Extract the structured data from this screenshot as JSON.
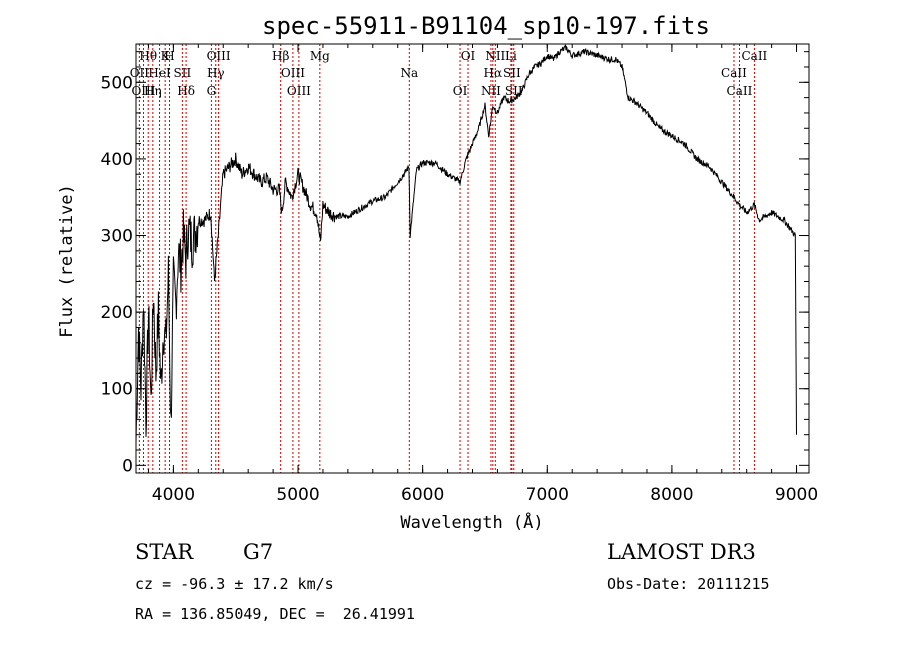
{
  "chart_data": {
    "type": "line",
    "title": "spec-55911-B91104_sp10-197.fits",
    "xlabel": "Wavelength (Å)",
    "ylabel": "Flux (relative)",
    "xlim": [
      3700,
      9100
    ],
    "ylim": [
      -10,
      550
    ],
    "xticks": [
      4000,
      5000,
      6000,
      7000,
      8000,
      9000
    ],
    "yticks": [
      0,
      100,
      200,
      300,
      400,
      500
    ],
    "spectrum": {
      "x": [
        3700,
        3720,
        3740,
        3760,
        3780,
        3800,
        3820,
        3840,
        3860,
        3880,
        3900,
        3920,
        3940,
        3960,
        3980,
        4000,
        4020,
        4040,
        4060,
        4080,
        4100,
        4120,
        4150,
        4200,
        4250,
        4300,
        4330,
        4360,
        4400,
        4450,
        4500,
        4550,
        4600,
        4650,
        4700,
        4750,
        4800,
        4850,
        4870,
        4900,
        4950,
        5000,
        5050,
        5100,
        5150,
        5180,
        5200,
        5250,
        5300,
        5400,
        5500,
        5600,
        5700,
        5800,
        5850,
        5890,
        5900,
        5950,
        6000,
        6100,
        6200,
        6300,
        6350,
        6400,
        6450,
        6500,
        6530,
        6563,
        6600,
        6650,
        6700,
        6750,
        6800,
        6850,
        6900,
        6950,
        7000,
        7050,
        7100,
        7150,
        7200,
        7300,
        7400,
        7500,
        7550,
        7600,
        7650,
        7700,
        7800,
        7900,
        8000,
        8100,
        8200,
        8300,
        8400,
        8498,
        8542,
        8600,
        8662,
        8700,
        8800,
        8900,
        8990,
        9000
      ],
      "y": [
        30,
        180,
        100,
        220,
        60,
        200,
        80,
        230,
        120,
        200,
        100,
        180,
        160,
        250,
        50,
        240,
        210,
        280,
        260,
        300,
        270,
        310,
        290,
        320,
        320,
        330,
        240,
        300,
        380,
        390,
        400,
        380,
        390,
        380,
        370,
        375,
        360,
        360,
        330,
        370,
        350,
        380,
        360,
        340,
        330,
        290,
        340,
        330,
        325,
        325,
        335,
        345,
        350,
        370,
        380,
        390,
        300,
        385,
        395,
        395,
        380,
        370,
        400,
        420,
        440,
        470,
        430,
        470,
        460,
        480,
        475,
        480,
        490,
        510,
        520,
        525,
        535,
        530,
        540,
        545,
        535,
        540,
        535,
        530,
        530,
        520,
        480,
        475,
        460,
        440,
        430,
        420,
        400,
        390,
        370,
        350,
        340,
        330,
        340,
        320,
        330,
        320,
        300,
        40
      ]
    },
    "lines": [
      {
        "label": "Hθ",
        "x": 3798
      },
      {
        "label": "OII",
        "x": 3727
      },
      {
        "label": "OIII",
        "x": 3760
      },
      {
        "label": "K",
        "x": 3934
      },
      {
        "label": "HeI",
        "x": 3889
      },
      {
        "label": "Hη",
        "x": 3835
      },
      {
        "label": "H",
        "x": 3969
      },
      {
        "label": "SII",
        "x": 4072
      },
      {
        "label": "Hδ",
        "x": 4102
      },
      {
        "label": "OIII",
        "x": 4363
      },
      {
        "label": "Hγ",
        "x": 4340
      },
      {
        "label": "G",
        "x": 4305
      },
      {
        "label": "Hβ",
        "x": 4861
      },
      {
        "label": "OIII",
        "x": 4959
      },
      {
        "label": "OIII",
        "x": 5007
      },
      {
        "label": "Mg",
        "x": 5175
      },
      {
        "label": "Na",
        "x": 5893
      },
      {
        "label": "OI",
        "x": 6300
      },
      {
        "label": "OI",
        "x": 6364
      },
      {
        "label": "Hα",
        "x": 6563
      },
      {
        "label": "NII",
        "x": 6548
      },
      {
        "label": "NII",
        "x": 6583
      },
      {
        "label": "SII",
        "x": 6716
      },
      {
        "label": "SII",
        "x": 6731
      },
      {
        "label": "Li",
        "x": 6708
      },
      {
        "label": "CaII",
        "x": 8498
      },
      {
        "label": "CaII",
        "x": 8542
      },
      {
        "label": "CaII",
        "x": 8662
      }
    ]
  },
  "info": {
    "class": "STAR",
    "subclass": "G7",
    "survey": "LAMOST DR3",
    "cz": "cz = -96.3 ± 17.2 km/s",
    "obsdate": "Obs-Date: 20111215",
    "radec": "RA = 136.85049, DEC =  26.41991"
  },
  "colors": {
    "axis": "#000000",
    "spectrum": "#000000",
    "line_marker": "#cc0000"
  }
}
